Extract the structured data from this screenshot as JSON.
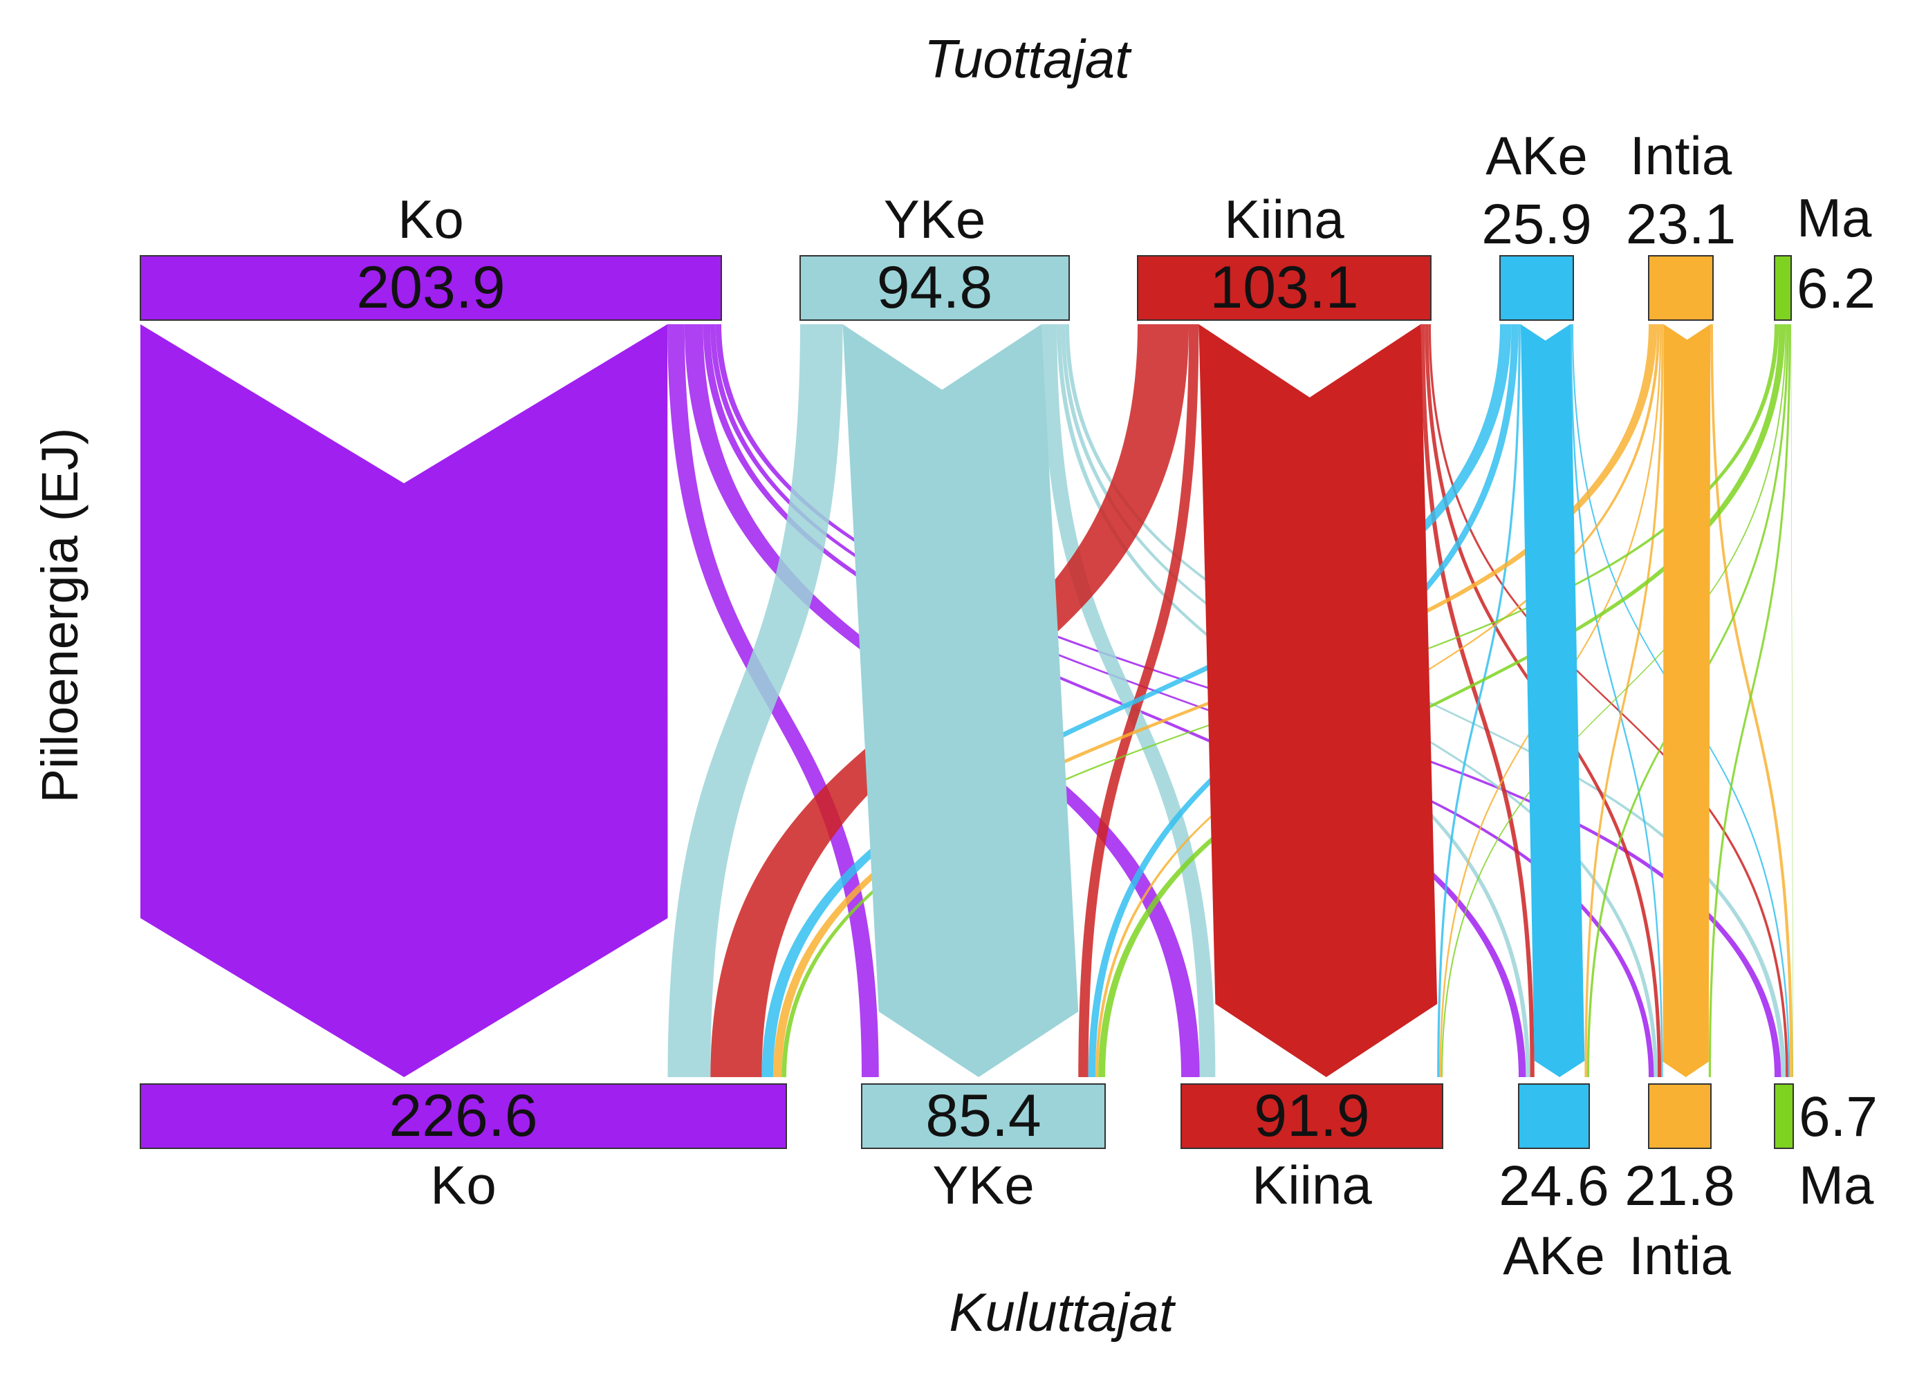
{
  "chart_data": {
    "type": "sankey",
    "title_top": "Tuottajat",
    "title_bottom": "Kuluttajat",
    "ylabel": "Piiloenergia (EJ)",
    "producers": [
      {
        "id": "ko",
        "label": "Ko",
        "value_label": "203.9",
        "value": 203.9,
        "color": "#a020f0"
      },
      {
        "id": "yke",
        "label": "YKe",
        "value_label": "94.8",
        "value": 94.8,
        "color": "#9bd3d8"
      },
      {
        "id": "kiina",
        "label": "Kiina",
        "value_label": "103.1",
        "value": 103.1,
        "color": "#cc2222"
      },
      {
        "id": "ake",
        "label": "AKe",
        "value_label": "25.9",
        "value": 25.9,
        "color": "#33bff0"
      },
      {
        "id": "intia",
        "label": "Intia",
        "value_label": "23.1",
        "value": 23.1,
        "color": "#f8b133"
      },
      {
        "id": "ma",
        "label": "Ma",
        "value_label": "6.2",
        "value": 6.2,
        "color": "#7ed321"
      }
    ],
    "consumers": [
      {
        "id": "ko",
        "label": "Ko",
        "value_label": "226.6",
        "value": 226.6,
        "color": "#a020f0"
      },
      {
        "id": "yke",
        "label": "YKe",
        "value_label": "85.4",
        "value": 85.4,
        "color": "#9bd3d8"
      },
      {
        "id": "kiina",
        "label": "Kiina",
        "value_label": "91.9",
        "value": 91.9,
        "color": "#cc2222"
      },
      {
        "id": "ake",
        "label": "AKe",
        "value_label": "24.6",
        "value": 24.6,
        "color": "#33bff0"
      },
      {
        "id": "intia",
        "label": "Intia",
        "value_label": "21.8",
        "value": 21.8,
        "color": "#f8b133"
      },
      {
        "id": "ma",
        "label": "Ma",
        "value_label": "6.7",
        "value": 6.7,
        "color": "#7ed321"
      }
    ],
    "flows": [
      {
        "from": "ko",
        "to": "ko",
        "value": 185.0
      },
      {
        "from": "ko",
        "to": "yke",
        "value": 6.0
      },
      {
        "from": "ko",
        "to": "kiina",
        "value": 6.5
      },
      {
        "from": "ko",
        "to": "ake",
        "value": 2.5
      },
      {
        "from": "ko",
        "to": "intia",
        "value": 1.9
      },
      {
        "from": "ko",
        "to": "ma",
        "value": 2.0
      },
      {
        "from": "yke",
        "to": "ko",
        "value": 15.0
      },
      {
        "from": "yke",
        "to": "yke",
        "value": 70.0
      },
      {
        "from": "yke",
        "to": "kiina",
        "value": 5.5
      },
      {
        "from": "yke",
        "to": "ake",
        "value": 1.5
      },
      {
        "from": "yke",
        "to": "intia",
        "value": 1.4
      },
      {
        "from": "yke",
        "to": "ma",
        "value": 1.4
      },
      {
        "from": "kiina",
        "to": "ko",
        "value": 18.0
      },
      {
        "from": "kiina",
        "to": "yke",
        "value": 3.5
      },
      {
        "from": "kiina",
        "to": "kiina",
        "value": 78.0
      },
      {
        "from": "kiina",
        "to": "ake",
        "value": 1.5
      },
      {
        "from": "kiina",
        "to": "intia",
        "value": 1.3
      },
      {
        "from": "kiina",
        "to": "ma",
        "value": 0.8
      },
      {
        "from": "ake",
        "to": "ko",
        "value": 4.0
      },
      {
        "from": "ake",
        "to": "yke",
        "value": 2.5
      },
      {
        "from": "ake",
        "to": "kiina",
        "value": 0.8
      },
      {
        "from": "ake",
        "to": "ake",
        "value": 17.5
      },
      {
        "from": "ake",
        "to": "intia",
        "value": 0.6
      },
      {
        "from": "ake",
        "to": "ma",
        "value": 0.5
      },
      {
        "from": "intia",
        "to": "ko",
        "value": 3.0
      },
      {
        "from": "intia",
        "to": "yke",
        "value": 1.0
      },
      {
        "from": "intia",
        "to": "kiina",
        "value": 0.6
      },
      {
        "from": "intia",
        "to": "ake",
        "value": 0.8
      },
      {
        "from": "intia",
        "to": "intia",
        "value": 16.8
      },
      {
        "from": "intia",
        "to": "ma",
        "value": 0.9
      },
      {
        "from": "ma",
        "to": "ko",
        "value": 1.6
      },
      {
        "from": "ma",
        "to": "yke",
        "value": 2.4
      },
      {
        "from": "ma",
        "to": "kiina",
        "value": 0.5
      },
      {
        "from": "ma",
        "to": "ake",
        "value": 0.8
      },
      {
        "from": "ma",
        "to": "intia",
        "value": 0.8
      },
      {
        "from": "ma",
        "to": "ma",
        "value": 0.1
      }
    ]
  }
}
